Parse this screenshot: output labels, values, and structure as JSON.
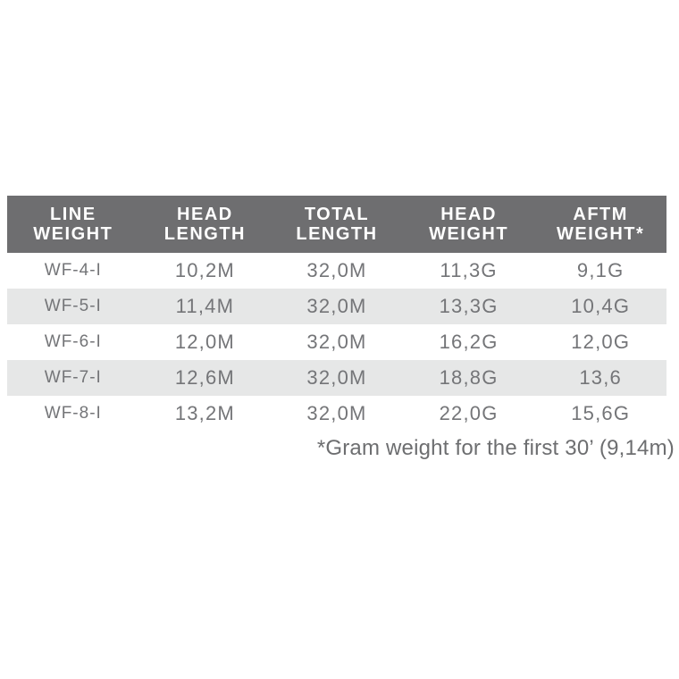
{
  "chart_data": {
    "type": "table",
    "columns": [
      "LINE WEIGHT",
      "HEAD LENGTH",
      "TOTAL LENGTH",
      "HEAD WEIGHT",
      "AFTM WEIGHT*"
    ],
    "header_lines": [
      [
        "LINE",
        "WEIGHT"
      ],
      [
        "HEAD",
        "LENGTH"
      ],
      [
        "TOTAL",
        "LENGTH"
      ],
      [
        "HEAD",
        "WEIGHT"
      ],
      [
        "AFTM",
        "WEIGHT*"
      ]
    ],
    "rows": [
      [
        "WF-4-I",
        "10,2M",
        "32,0M",
        "11,3G",
        "9,1G"
      ],
      [
        "WF-5-I",
        "11,4M",
        "32,0M",
        "13,3G",
        "10,4G"
      ],
      [
        "WF-6-I",
        "12,0M",
        "32,0M",
        "16,2G",
        "12,0G"
      ],
      [
        "WF-7-I",
        "12,6M",
        "32,0M",
        "18,8G",
        "13,6"
      ],
      [
        "WF-8-I",
        "13,2M",
        "32,0M",
        "22,0G",
        "15,6G"
      ]
    ],
    "footnote": "*Gram weight for the first 30’ (9,14m)",
    "layout": {
      "striped": true,
      "stripe_pattern": "odd rows white, even rows light gray",
      "header_style": "dark gray band, white bold uppercase two-line labels, centered",
      "cell_alignment": "center"
    }
  },
  "colors": {
    "page_bg": "#ffffff",
    "header_bg": "#6e6e70",
    "header_text": "#ffffff",
    "row_bg": "#ffffff",
    "row_alt_bg": "#e6e7e7",
    "body_text": "#747578",
    "footnote_text": "#6d6e70"
  }
}
